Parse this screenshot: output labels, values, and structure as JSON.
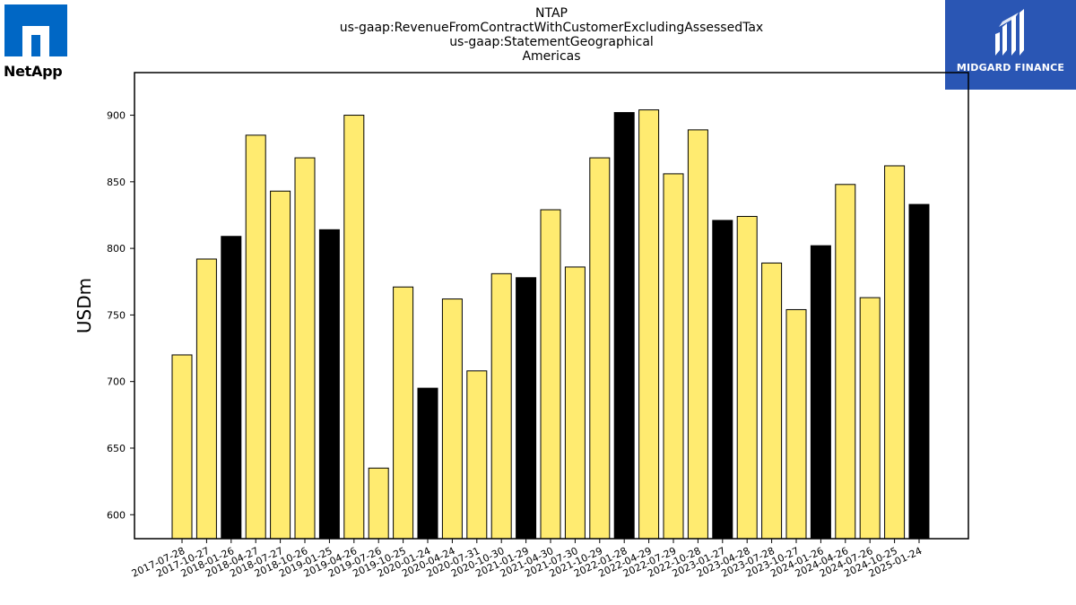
{
  "titles": [
    "NTAP",
    "us-gaap:RevenueFromContractWithCustomerExcludingAssessedTax",
    "us-gaap:StatementGeographical",
    "Americas"
  ],
  "logos": {
    "left_brand": "NetApp",
    "right_brand": "MIDGARD FINANCE"
  },
  "colors": {
    "bar_primary": "#FFEB70",
    "bar_highlight": "#000000",
    "bar_edge": "#000000",
    "logo_blue_left": "#0067C5",
    "logo_blue_right": "#2A56B4"
  },
  "chart_data": {
    "type": "bar",
    "title": "NTAP",
    "subtitles": [
      "us-gaap:RevenueFromContractWithCustomerExcludingAssessedTax",
      "us-gaap:StatementGeographical",
      "Americas"
    ],
    "xlabel": "",
    "ylabel": "USDm",
    "ylim": [
      582,
      932
    ],
    "yticks": [
      600,
      650,
      700,
      750,
      800,
      850,
      900
    ],
    "grid": false,
    "legend": "none",
    "categories": [
      "2017-07-28",
      "2017-10-27",
      "2018-01-26",
      "2018-04-27",
      "2018-07-27",
      "2018-10-26",
      "2019-01-25",
      "2019-04-26",
      "2019-07-26",
      "2019-10-25",
      "2020-01-24",
      "2020-04-24",
      "2020-07-31",
      "2020-10-30",
      "2021-01-29",
      "2021-04-30",
      "2021-07-30",
      "2021-10-29",
      "2022-01-28",
      "2022-04-29",
      "2022-07-29",
      "2022-10-28",
      "2023-01-27",
      "2023-04-28",
      "2023-07-28",
      "2023-10-27",
      "2024-01-26",
      "2024-04-26",
      "2024-07-26",
      "2024-10-25",
      "2025-01-24"
    ],
    "values": [
      720,
      792,
      809,
      885,
      843,
      868,
      814,
      900,
      635,
      771,
      695,
      762,
      708,
      781,
      778,
      829,
      786,
      868,
      902,
      904,
      856,
      889,
      821,
      824,
      789,
      754,
      802,
      848,
      763,
      862,
      833
    ],
    "highlight_categories": [
      "2018-01-26",
      "2019-01-25",
      "2020-01-24",
      "2021-01-29",
      "2022-01-28",
      "2023-01-27",
      "2024-01-26",
      "2025-01-24"
    ]
  }
}
